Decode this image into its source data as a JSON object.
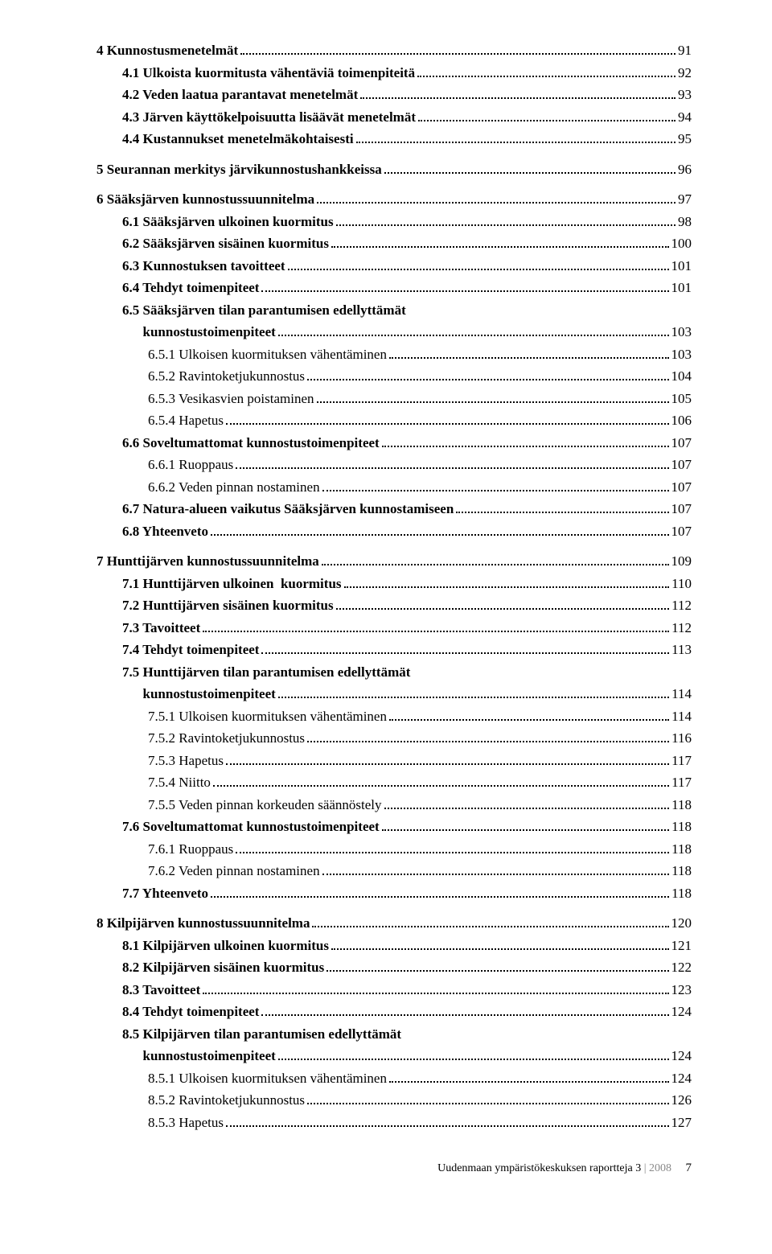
{
  "footer": {
    "text_dark": "Uudenmaan ympäristökeskuksen raportteja  3 ",
    "text_light": "| 2008",
    "page_number": "7"
  },
  "toc": [
    {
      "title": "4 Kunnostusmenetelmät",
      "page": "91",
      "indent": 0,
      "bold": true
    },
    {
      "title": "4.1 Ulkoista kuormitusta vähentäviä toimenpiteitä",
      "page": "92",
      "indent": 1,
      "bold": true
    },
    {
      "title": "4.2 Veden laatua parantavat menetelmät",
      "page": "93",
      "indent": 1,
      "bold": true
    },
    {
      "title": "4.3 Järven käyttökelpoisuutta lisäävät menetelmät",
      "page": "94",
      "indent": 1,
      "bold": true
    },
    {
      "title": "4.4 Kustannukset menetelmäkohtaisesti",
      "page": "95",
      "indent": 1,
      "bold": true
    },
    {
      "gap": true
    },
    {
      "title": "5 Seurannan merkitys järvikunnostushankkeissa",
      "page": "96",
      "indent": 0,
      "bold": true
    },
    {
      "gap": true
    },
    {
      "title": "6 Sääksjärven kunnostussuunnitelma",
      "page": "97",
      "indent": 0,
      "bold": true
    },
    {
      "title": "6.1 Sääksjärven ulkoinen kuormitus",
      "page": "98",
      "indent": 1,
      "bold": true
    },
    {
      "title": "6.2 Sääksjärven sisäinen kuormitus",
      "page": "100",
      "indent": 1,
      "bold": true
    },
    {
      "title": "6.3 Kunnostuksen tavoitteet",
      "page": "101",
      "indent": 1,
      "bold": true
    },
    {
      "title": "6.4 Tehdyt toimenpiteet",
      "page": "101",
      "indent": 1,
      "bold": true
    },
    {
      "title": "6.5 Sääksjärven tilan parantumisen edellyttämät\n      kunnostustoimenpiteet",
      "page": "103",
      "indent": 1,
      "bold": true,
      "multiline": true
    },
    {
      "title": "6.5.1 Ulkoisen kuormituksen vähentäminen",
      "page": "103",
      "indent": 2,
      "bold": false
    },
    {
      "title": "6.5.2 Ravintoketjukunnostus",
      "page": "104",
      "indent": 2,
      "bold": false
    },
    {
      "title": "6.5.3 Vesikasvien poistaminen",
      "page": "105",
      "indent": 2,
      "bold": false
    },
    {
      "title": "6.5.4 Hapetus",
      "page": "106",
      "indent": 2,
      "bold": false
    },
    {
      "title": "6.6 Soveltumattomat kunnostustoimenpiteet",
      "page": "107",
      "indent": 1,
      "bold": true
    },
    {
      "title": "6.6.1 Ruoppaus",
      "page": "107",
      "indent": 2,
      "bold": false
    },
    {
      "title": "6.6.2 Veden pinnan nostaminen",
      "page": "107",
      "indent": 2,
      "bold": false
    },
    {
      "title": "6.7 Natura-alueen vaikutus Sääksjärven kunnostamiseen",
      "page": "107",
      "indent": 1,
      "bold": true
    },
    {
      "title": "6.8 Yhteenveto",
      "page": "107",
      "indent": 1,
      "bold": true
    },
    {
      "gap": true
    },
    {
      "title": "7 Hunttijärven kunnostussuunnitelma",
      "page": "109",
      "indent": 0,
      "bold": true
    },
    {
      "title": "7.1 Hunttijärven ulkoinen  kuormitus",
      "page": "110",
      "indent": 1,
      "bold": true
    },
    {
      "title": "7.2 Hunttijärven sisäinen kuormitus",
      "page": "112",
      "indent": 1,
      "bold": true
    },
    {
      "title": "7.3 Tavoitteet",
      "page": "112",
      "indent": 1,
      "bold": true
    },
    {
      "title": "7.4 Tehdyt toimenpiteet",
      "page": "113",
      "indent": 1,
      "bold": true
    },
    {
      "title": "7.5 Hunttijärven tilan parantumisen edellyttämät\n      kunnostustoimenpiteet",
      "page": "114",
      "indent": 1,
      "bold": true,
      "multiline": true
    },
    {
      "title": "7.5.1 Ulkoisen kuormituksen vähentäminen",
      "page": "114",
      "indent": 2,
      "bold": false
    },
    {
      "title": "7.5.2 Ravintoketjukunnostus",
      "page": "116",
      "indent": 2,
      "bold": false
    },
    {
      "title": "7.5.3 Hapetus",
      "page": "117",
      "indent": 2,
      "bold": false
    },
    {
      "title": "7.5.4 Niitto",
      "page": "117",
      "indent": 2,
      "bold": false
    },
    {
      "title": "7.5.5 Veden pinnan korkeuden säännöstely",
      "page": "118",
      "indent": 2,
      "bold": false
    },
    {
      "title": "7.6 Soveltumattomat kunnostustoimenpiteet",
      "page": "118",
      "indent": 1,
      "bold": true
    },
    {
      "title": "7.6.1 Ruoppaus",
      "page": "118",
      "indent": 2,
      "bold": false
    },
    {
      "title": "7.6.2 Veden pinnan nostaminen",
      "page": "118",
      "indent": 2,
      "bold": false
    },
    {
      "title": "7.7 Yhteenveto",
      "page": "118",
      "indent": 1,
      "bold": true
    },
    {
      "gap": true
    },
    {
      "title": "8 Kilpijärven kunnostussuunnitelma",
      "page": "120",
      "indent": 0,
      "bold": true
    },
    {
      "title": "8.1 Kilpijärven ulkoinen kuormitus",
      "page": "121",
      "indent": 1,
      "bold": true
    },
    {
      "title": "8.2 Kilpijärven sisäinen kuormitus",
      "page": "122",
      "indent": 1,
      "bold": true
    },
    {
      "title": "8.3 Tavoitteet",
      "page": "123",
      "indent": 1,
      "bold": true
    },
    {
      "title": "8.4 Tehdyt toimenpiteet",
      "page": "124",
      "indent": 1,
      "bold": true
    },
    {
      "title": "8.5 Kilpijärven tilan parantumisen edellyttämät\n      kunnostustoimenpiteet",
      "page": "124",
      "indent": 1,
      "bold": true,
      "multiline": true
    },
    {
      "title": "8.5.1 Ulkoisen kuormituksen vähentäminen",
      "page": "124",
      "indent": 2,
      "bold": false
    },
    {
      "title": "8.5.2 Ravintoketjukunnostus",
      "page": "126",
      "indent": 2,
      "bold": false
    },
    {
      "title": "8.5.3 Hapetus",
      "page": "127",
      "indent": 2,
      "bold": false
    }
  ]
}
